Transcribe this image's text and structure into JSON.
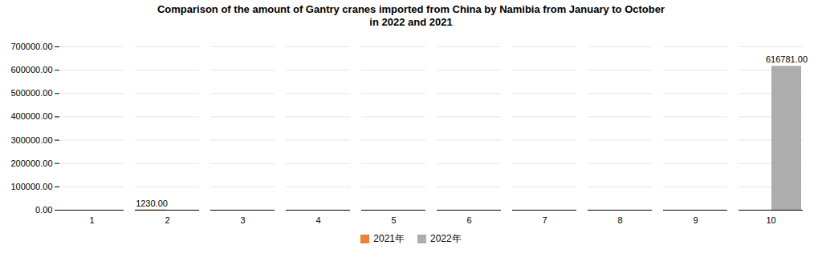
{
  "chart_data": {
    "type": "bar",
    "title": "Comparison of the amount of Gantry cranes imported from China by Namibia from January to October\nin 2022 and 2021",
    "categories": [
      "1",
      "2",
      "3",
      "4",
      "5",
      "6",
      "7",
      "8",
      "9",
      "10"
    ],
    "series": [
      {
        "name": "2021年",
        "color": "#E8813A",
        "values": [
          0,
          1230,
          0,
          0,
          0,
          0,
          0,
          0,
          0,
          0
        ],
        "value_labels": [
          null,
          "1230.00",
          null,
          null,
          null,
          null,
          null,
          null,
          null,
          null
        ]
      },
      {
        "name": "2022年",
        "color": "#ADADAD",
        "values": [
          0,
          0,
          0,
          0,
          0,
          0,
          0,
          0,
          0,
          616781
        ],
        "value_labels": [
          null,
          null,
          null,
          null,
          null,
          null,
          null,
          null,
          null,
          "616781.00"
        ]
      }
    ],
    "ylim": [
      0,
      700000
    ],
    "yticks": [
      {
        "value": 0,
        "label": "0.00"
      },
      {
        "value": 100000,
        "label": "100000.00"
      },
      {
        "value": 200000,
        "label": "200000.00"
      },
      {
        "value": 300000,
        "label": "300000.00"
      },
      {
        "value": 400000,
        "label": "400000.00"
      },
      {
        "value": 500000,
        "label": "500000.00"
      },
      {
        "value": 600000,
        "label": "600000.00"
      },
      {
        "value": 700000,
        "label": "700000.00"
      }
    ],
    "grid": true,
    "legend": "bottom",
    "data_labels": true
  }
}
